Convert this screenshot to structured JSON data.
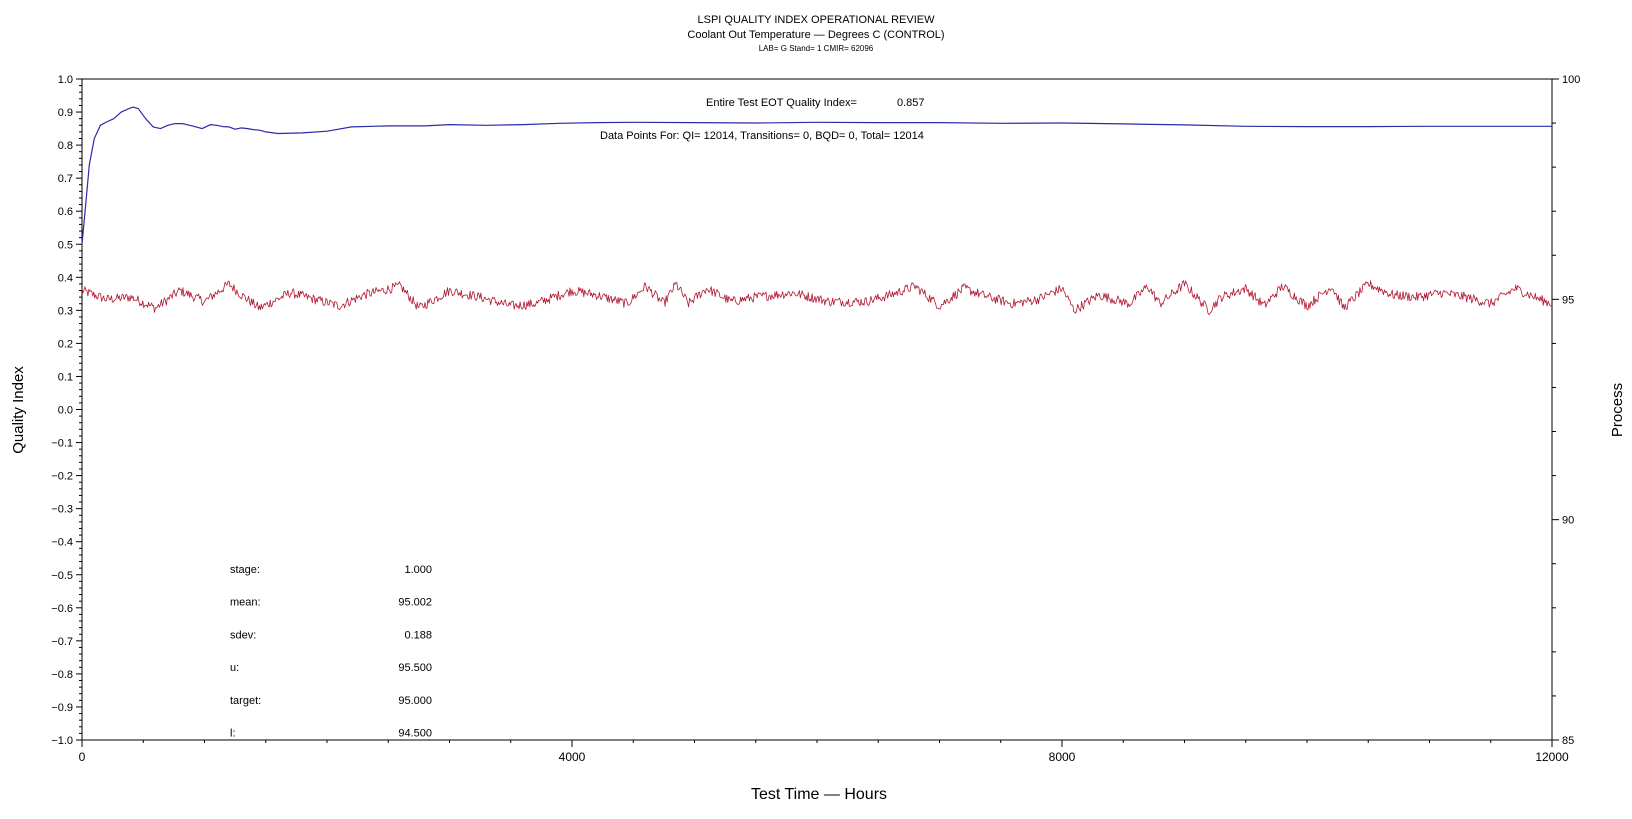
{
  "header": {
    "title": "LSPI QUALITY INDEX OPERATIONAL REVIEW",
    "subtitle": "Coolant Out Temperature — Degrees C (CONTROL)",
    "info": "LAB= G Stand= 1 CMIR= 62096"
  },
  "annotations": {
    "eot_label": "Entire Test EOT Quality Index=",
    "eot_value": "0.857",
    "data_points": "Data Points For: QI= 12014, Transitions=     0, BQD=     0, Total= 12014"
  },
  "stats": [
    {
      "label": "stage:",
      "value": "1.000"
    },
    {
      "label": "mean:",
      "value": "95.002"
    },
    {
      "label": "sdev:",
      "value": "0.188"
    },
    {
      "label": "u:",
      "value": "95.500"
    },
    {
      "label": "target:",
      "value": "95.000"
    },
    {
      "label": "l:",
      "value": "94.500"
    }
  ],
  "chart_data": {
    "type": "line",
    "xlabel": "Test Time — Hours",
    "ylabel": "Quality Index",
    "y2label": "Process",
    "xlim": [
      0,
      12000
    ],
    "ylim": [
      -1.0,
      1.0
    ],
    "y2lim": [
      85,
      100
    ],
    "x_ticks": [
      "0",
      "4000",
      "8000",
      "12000"
    ],
    "y_ticks": [
      "1.0",
      "0.9",
      "0.8",
      "0.7",
      "0.6",
      "0.5",
      "0.4",
      "0.3",
      "0.2",
      "0.1",
      "0.0",
      "−0.1",
      "−0.2",
      "−0.3",
      "−0.4",
      "−0.5",
      "−0.6",
      "−0.7",
      "−0.8",
      "−0.9",
      "−1.0"
    ],
    "y2_ticks": [
      "100",
      "95",
      "90",
      "85"
    ],
    "series": [
      {
        "name": "",
        "axis": "left",
        "color": "#2a2aa8",
        "x": [
          0,
          30,
          60,
          100,
          150,
          200,
          260,
          320,
          380,
          420,
          460,
          520,
          580,
          640,
          700,
          760,
          820,
          900,
          980,
          1050,
          1100,
          1150,
          1200,
          1250,
          1300,
          1350,
          1400,
          1450,
          1500,
          1600,
          1800,
          2000,
          2200,
          2500,
          2800,
          3000,
          3300,
          3600,
          3900,
          4200,
          4500,
          5000,
          5500,
          6000,
          6500,
          7000,
          7500,
          8000,
          8500,
          9000,
          9500,
          10000,
          10500,
          11000,
          11500,
          12000
        ],
        "y": [
          0.5,
          0.62,
          0.74,
          0.82,
          0.86,
          0.87,
          0.88,
          0.9,
          0.91,
          0.915,
          0.91,
          0.88,
          0.855,
          0.85,
          0.86,
          0.865,
          0.865,
          0.858,
          0.85,
          0.862,
          0.86,
          0.856,
          0.855,
          0.848,
          0.852,
          0.85,
          0.847,
          0.845,
          0.84,
          0.835,
          0.837,
          0.842,
          0.855,
          0.858,
          0.858,
          0.862,
          0.86,
          0.862,
          0.866,
          0.868,
          0.869,
          0.868,
          0.867,
          0.869,
          0.868,
          0.868,
          0.866,
          0.867,
          0.864,
          0.861,
          0.857,
          0.856,
          0.856,
          0.857,
          0.857,
          0.857
        ]
      },
      {
        "name": "",
        "axis": "right",
        "color": "#b01830",
        "x": [
          0,
          200,
          400,
          600,
          800,
          1000,
          1200,
          1300,
          1450,
          1700,
          1900,
          2100,
          2300,
          2600,
          2750,
          3000,
          3250,
          3500,
          3700,
          4000,
          4200,
          4450,
          4600,
          4750,
          4850,
          4950,
          5100,
          5300,
          5500,
          5800,
          6100,
          6400,
          6600,
          6800,
          7000,
          7200,
          7400,
          7600,
          7800,
          8000,
          8100,
          8300,
          8550,
          8700,
          8800,
          9000,
          9200,
          9300,
          9500,
          9650,
          9800,
          10000,
          10200,
          10300,
          10500,
          10700,
          10900,
          11100,
          11300,
          11500,
          11700,
          11900,
          12000
        ],
        "y": [
          95.2,
          95.0,
          95.05,
          94.8,
          95.2,
          94.95,
          95.35,
          95.1,
          94.8,
          95.15,
          95.0,
          94.85,
          95.1,
          95.3,
          94.8,
          95.2,
          95.05,
          94.85,
          94.9,
          95.2,
          95.1,
          94.9,
          95.3,
          94.9,
          95.35,
          94.9,
          95.25,
          94.95,
          95.05,
          95.15,
          94.95,
          94.95,
          95.1,
          95.3,
          94.85,
          95.25,
          95.05,
          94.9,
          95.0,
          95.25,
          94.75,
          95.1,
          94.9,
          95.3,
          94.9,
          95.35,
          94.75,
          95.05,
          95.25,
          94.85,
          95.3,
          94.85,
          95.3,
          94.8,
          95.35,
          95.1,
          95.05,
          95.15,
          95.05,
          94.9,
          95.25,
          95.0,
          94.9
        ]
      }
    ]
  }
}
